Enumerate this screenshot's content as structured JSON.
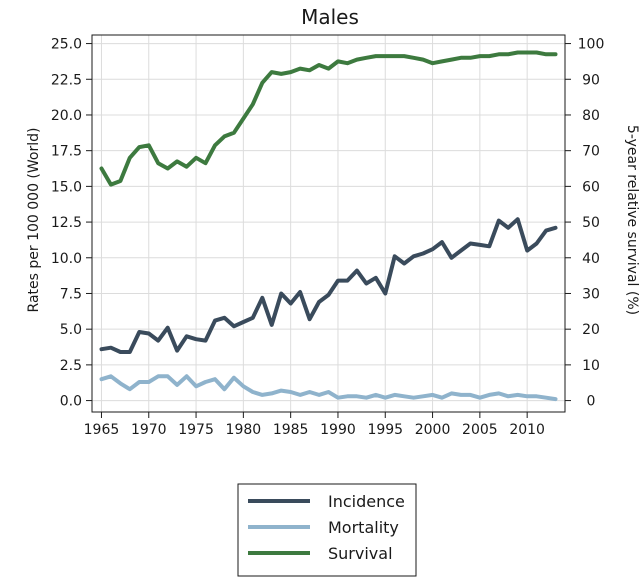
{
  "chart_data": {
    "type": "line",
    "title": "Males",
    "ylabel_left": "Rates per 100 000 (World)",
    "ylabel_right": "5-year relative survival (%)",
    "xlabel": "",
    "x": [
      1965,
      1966,
      1967,
      1968,
      1969,
      1970,
      1971,
      1972,
      1973,
      1974,
      1975,
      1976,
      1977,
      1978,
      1979,
      1980,
      1981,
      1982,
      1983,
      1984,
      1985,
      1986,
      1987,
      1988,
      1989,
      1990,
      1991,
      1992,
      1993,
      1994,
      1995,
      1996,
      1997,
      1998,
      1999,
      2000,
      2001,
      2002,
      2003,
      2004,
      2005,
      2006,
      2007,
      2008,
      2009,
      2010,
      2011,
      2012,
      2013
    ],
    "xlim": [
      1964,
      2014
    ],
    "x_ticks": [
      "1965",
      "1970",
      "1975",
      "1980",
      "1985",
      "1990",
      "1995",
      "2000",
      "2005",
      "2010"
    ],
    "ylim_left": [
      -0.8,
      25.6
    ],
    "y_ticks_left": [
      "0.0",
      "2.5",
      "5.0",
      "7.5",
      "10.0",
      "12.5",
      "15.0",
      "17.5",
      "20.0",
      "22.5",
      "25.0"
    ],
    "ylim_right": [
      -3.2,
      102.4
    ],
    "y_ticks_right": [
      "0",
      "10",
      "20",
      "30",
      "40",
      "50",
      "60",
      "70",
      "80",
      "90",
      "100"
    ],
    "grid": true,
    "legend_position": "bottom",
    "series": [
      {
        "name": "Incidence",
        "axis": "left",
        "color": "#3a4b5c",
        "values": [
          3.6,
          3.7,
          3.4,
          3.4,
          4.8,
          4.7,
          4.2,
          5.1,
          3.5,
          4.5,
          4.3,
          4.2,
          5.6,
          5.8,
          5.2,
          5.5,
          5.8,
          7.2,
          5.3,
          7.5,
          6.8,
          7.6,
          5.7,
          6.9,
          7.4,
          8.4,
          8.4,
          9.1,
          8.2,
          8.6,
          7.5,
          10.1,
          9.6,
          10.1,
          10.3,
          10.6,
          11.1,
          10.0,
          10.5,
          11.0,
          10.9,
          10.8,
          12.6,
          12.1,
          12.7,
          10.5,
          11.0,
          11.9,
          12.1
        ]
      },
      {
        "name": "Mortality",
        "axis": "left",
        "color": "#8fb3cc",
        "values": [
          1.5,
          1.7,
          1.2,
          0.8,
          1.3,
          1.3,
          1.7,
          1.7,
          1.1,
          1.7,
          1.0,
          1.3,
          1.5,
          0.8,
          1.6,
          1.0,
          0.6,
          0.4,
          0.5,
          0.7,
          0.6,
          0.4,
          0.6,
          0.4,
          0.6,
          0.2,
          0.3,
          0.3,
          0.2,
          0.4,
          0.2,
          0.4,
          0.3,
          0.2,
          0.3,
          0.4,
          0.2,
          0.5,
          0.4,
          0.4,
          0.2,
          0.4,
          0.5,
          0.3,
          0.4,
          0.3,
          0.3,
          0.2,
          0.1
        ]
      },
      {
        "name": "Survival",
        "axis": "right",
        "color": "#3d7a3f",
        "values": [
          65,
          60.5,
          61.5,
          68,
          71,
          71.5,
          66.5,
          65,
          67,
          65.5,
          68,
          66.5,
          71.5,
          74,
          75,
          79,
          83,
          89,
          92,
          91.5,
          92,
          93,
          92.5,
          94,
          93,
          95,
          94.5,
          95.5,
          96,
          96.5,
          96.5,
          96.5,
          96.5,
          96,
          95.5,
          94.5,
          95,
          95.5,
          96,
          96,
          96.5,
          96.5,
          97,
          97,
          97.5,
          97.5,
          97.5,
          97,
          97
        ]
      }
    ]
  }
}
